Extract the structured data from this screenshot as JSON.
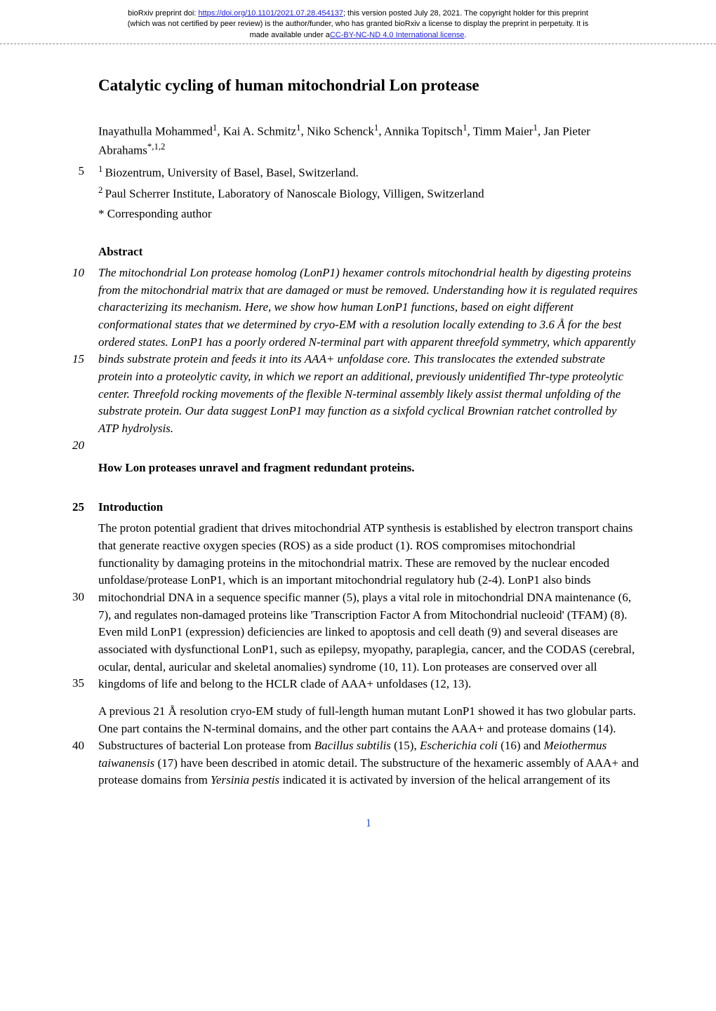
{
  "preprint_banner": {
    "line1_pre": "bioRxiv preprint doi: ",
    "doi_url": "https://doi.org/10.1101/2021.07.28.454137",
    "line1_post": "; this version posted July 28, 2021. The copyright holder for this preprint",
    "line2": "(which was not certified by peer review) is the author/funder, who has granted bioRxiv a license to display the preprint in perpetuity. It is",
    "line3_pre": "made available under a",
    "license_text": "CC-BY-NC-ND 4.0 International license",
    "line3_post": "."
  },
  "title": "Catalytic cycling of human mitochondrial Lon protease",
  "authors_html": "Inayathulla Mohammed<sup>1</sup>, Kai A. Schmitz<sup>1</sup>, Niko Schenck<sup>1</sup>, Annika Topitsch<sup>1</sup>, Timm Maier<sup>1</sup>, Jan Pieter Abrahams<sup>*,1,2</sup>",
  "affiliation1": "Biozentrum, University of Basel, Basel, Switzerland.",
  "affiliation2": "Paul Scherrer Institute, Laboratory of Nanoscale Biology, Villigen, Switzerland",
  "corresponding": "* Corresponding author",
  "abstract_heading": "Abstract",
  "abstract_text": "The mitochondrial Lon protease homolog (LonP1) hexamer controls mitochondrial health by digesting proteins from the mitochondrial matrix that are damaged or must be removed. Understanding how it is regulated requires characterizing its mechanism. Here, we show how human LonP1 functions, based on eight different conformational states that we determined by cryo-EM with a resolution locally extending to 3.6 Å for the best ordered states. LonP1 has a poorly ordered N-terminal part with apparent threefold symmetry, which apparently binds substrate protein and feeds it into its AAA+ unfoldase core. This translocates the extended substrate protein into a proteolytic cavity, in which we report an additional, previously unidentified Thr-type proteolytic center. Threefold rocking movements of the flexible N-terminal assembly likely assist thermal unfolding of the substrate protein. Our data suggest LonP1 may function as a sixfold cyclical Brownian ratchet controlled by ATP hydrolysis.",
  "one_liner": "How Lon proteases unravel and fragment redundant proteins.",
  "intro_heading": "Introduction",
  "para1": "The proton potential gradient that drives mitochondrial ATP synthesis is established by electron transport chains that generate reactive oxygen species (ROS) as a side product (1). ROS compromises mitochondrial functionality by damaging proteins in the mitochondrial matrix. These are removed by the nuclear encoded unfoldase/protease LonP1, which is an important mitochondrial regulatory hub (2-4). LonP1 also binds mitochondrial DNA in a sequence specific manner (5), plays a vital role in mitochondrial DNA maintenance (6, 7), and regulates non-damaged proteins like 'Transcription Factor A from Mitochondrial nucleoid' (TFAM) (8). Even mild LonP1 (expression) deficiencies are linked to apoptosis and cell death (9) and several diseases are associated with dysfunctional LonP1, such as epilepsy, myopathy, paraplegia, cancer, and the CODAS (cerebral, ocular, dental, auricular and skeletal anomalies) syndrome (10, 11). Lon proteases are conserved over all kingdoms of life and belong to the HCLR clade of AAA+ unfoldases (12, 13).",
  "para2_pre": "A previous 21 Å resolution cryo-EM study of full-length human mutant LonP1 showed it has two globular parts. One part contains the N-terminal domains, and the other part contains the AAA+ and protease domains (14). Substructures of bacterial Lon protease from ",
  "para2_sp1": "Bacillus subtilis",
  "para2_mid1": " (15), ",
  "para2_sp2": "Escherichia coli",
  "para2_mid2": " (16) and ",
  "para2_sp3": "Meiothermus taiwanensis",
  "para2_mid3": " (17) have been described in atomic detail. The substructure of the hexameric assembly of AAA+ and protease domains from ",
  "para2_sp4": "Yersinia pestis",
  "para2_post": " indicated it is activated by inversion of the helical arrangement of its",
  "line_numbers": {
    "ln5": "5",
    "ln10": "10",
    "ln15": "15",
    "ln20": "20",
    "ln25": "25",
    "ln30": "30",
    "ln35": "35",
    "ln40": "40"
  },
  "page_number": "1"
}
